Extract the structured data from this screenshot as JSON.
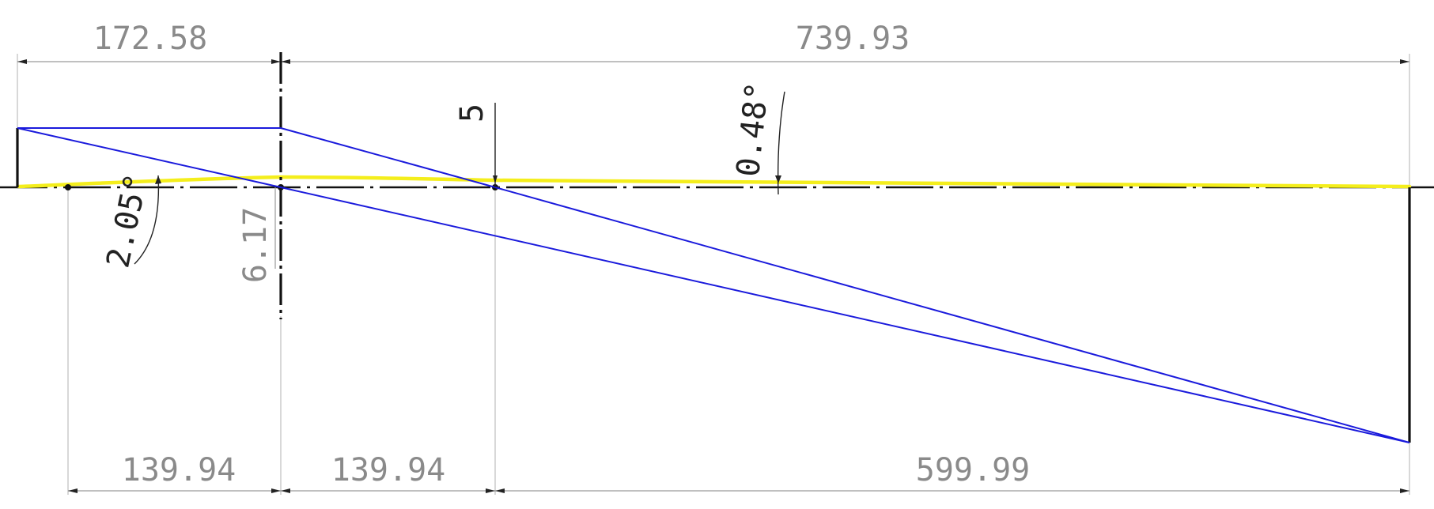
{
  "dimensions": {
    "top_left": "172.58",
    "top_right": "739.93",
    "bottom_1": "139.94",
    "bottom_2": "139.94",
    "bottom_3": "599.99",
    "offset_vertical": "5",
    "lens_height": "6.17",
    "angle_left": "2.05°",
    "angle_right": "0.48°"
  },
  "colors": {
    "ray": "#1a1adc",
    "highlight": "#f4ee1c",
    "axis": "#111111",
    "dimension": "#9a9a9a"
  }
}
